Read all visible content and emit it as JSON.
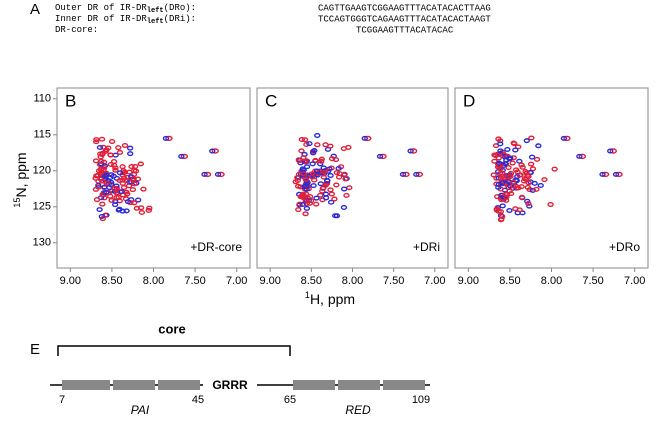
{
  "panel_a": {
    "label": "A",
    "rows": [
      {
        "name": "Outer DR of IR-DR",
        "sub": "left",
        "suffix": "(DRo):",
        "sequence": "CAGTTGAAGTCGGAAGTTTACATACACTTAAG"
      },
      {
        "name": "Inner DR of IR-DR",
        "sub": "left",
        "suffix": "(DRi):",
        "sequence": "TCCAGTGGGTCAGAAGTTTACATACACTAAGT"
      },
      {
        "name": "DR-core:",
        "sequence": "TCGGAAGTTTACATACAC"
      }
    ]
  },
  "spectra": {
    "y_label_sup": "15",
    "y_label": "N, ppm",
    "x_label_sup": "1",
    "x_label": "H, ppm",
    "xlim": [
      9.16,
      6.84
    ],
    "ylim": [
      108.5,
      133.5
    ],
    "xticks": [
      {
        "value": 9,
        "label": "9.00"
      },
      {
        "value": 8.5,
        "label": "8.50"
      },
      {
        "value": 8,
        "label": "8.00"
      },
      {
        "value": 7.5,
        "label": "7.50"
      },
      {
        "value": 7,
        "label": "7.00"
      }
    ],
    "yticks": [
      110,
      115,
      120,
      125,
      130
    ],
    "panels": [
      {
        "label": "B",
        "annotation": "+DR-core"
      },
      {
        "label": "C",
        "annotation": "+DRi"
      },
      {
        "label": "D",
        "annotation": "+DRo"
      }
    ]
  },
  "panel_e": {
    "label": "E",
    "core_label": "core",
    "grrr": "GRRR",
    "positions": [
      "7",
      "45",
      "65",
      "109"
    ],
    "domains": [
      "PAI",
      "RED"
    ]
  }
}
